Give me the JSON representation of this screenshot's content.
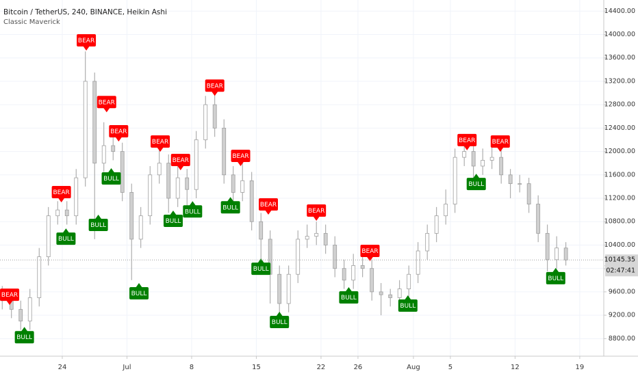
{
  "chart_data": {
    "type": "candlestick",
    "title": "Bitcoin / TetherUS, 240, BINANCE, Heikin Ashi",
    "subtitle": "Classic Maverick",
    "color": "#9e9e9e",
    "grid": true,
    "xlim": [
      -6.74,
      58.6
    ],
    "ylim": [
      8500,
      14590
    ],
    "xticks": [
      {
        "value": 0,
        "label": "24"
      },
      {
        "value": 7,
        "label": "Jul"
      },
      {
        "value": 14,
        "label": "8"
      },
      {
        "value": 21,
        "label": "15"
      },
      {
        "value": 28,
        "label": "22"
      },
      {
        "value": 32,
        "label": "26"
      },
      {
        "value": 38,
        "label": "Aug"
      },
      {
        "value": 42,
        "label": "5"
      },
      {
        "value": 49,
        "label": "12"
      },
      {
        "value": 56,
        "label": "19"
      }
    ],
    "yticks": [
      {
        "value": 8800,
        "label": "8800.00"
      },
      {
        "value": 9200,
        "label": "9200.00"
      },
      {
        "value": 9600,
        "label": "9600.00"
      },
      {
        "value": 10000,
        "label": "10000.00"
      },
      {
        "value": 10400,
        "label": "10400.00"
      },
      {
        "value": 10800,
        "label": "10800.00"
      },
      {
        "value": 11200,
        "label": "11200.00"
      },
      {
        "value": 11600,
        "label": "11600.00"
      },
      {
        "value": 12000,
        "label": "12000.00"
      },
      {
        "value": 12400,
        "label": "12400.00"
      },
      {
        "value": 12800,
        "label": "12800.00"
      },
      {
        "value": 13200,
        "label": "13200.00"
      },
      {
        "value": 13600,
        "label": "13600.00"
      },
      {
        "value": 14000,
        "label": "14000.00"
      },
      {
        "value": 14400,
        "label": "14400.00"
      }
    ],
    "x": [
      -6.5,
      -5.5,
      -4.5,
      -3.5,
      -2.5,
      -1.5,
      -0.5,
      0.5,
      1.5,
      2.5,
      3.5,
      4.5,
      5.5,
      6.5,
      7.5,
      8.5,
      9.5,
      10.5,
      11.5,
      12.5,
      13.5,
      14.5,
      15.5,
      16.5,
      17.5,
      18.5,
      19.5,
      20.5,
      21.5,
      22.5,
      23.5,
      24.5,
      25.5,
      26.5,
      27.5,
      28.5,
      29.5,
      30.5,
      31.5,
      32.5,
      33.5,
      34.5,
      35.5,
      36.5,
      37.5,
      38.5,
      39.5,
      40.5,
      41.5,
      42.5,
      43.5,
      44.5,
      45.5,
      46.5,
      47.5,
      48.5,
      49.5,
      50.5,
      51.5,
      52.5,
      53.5,
      54.5
    ],
    "open": [
      9550,
      9450,
      9300,
      9100,
      9500,
      10200,
      10900,
      11000,
      10900,
      11550,
      13200,
      11800,
      12100,
      12000,
      11300,
      10500,
      10900,
      11600,
      11800,
      11200,
      11550,
      11350,
      12200,
      12800,
      12400,
      11600,
      11300,
      11500,
      10800,
      10500,
      9900,
      9400,
      9900,
      10500,
      10550,
      10600,
      10400,
      10000,
      9800,
      10050,
      10000,
      9600,
      9550,
      9500,
      9650,
      9900,
      10300,
      10600,
      10900,
      11100,
      11900,
      12000,
      11750,
      11850,
      11900,
      11600,
      11450,
      11450,
      11100,
      10600,
      10150,
      10350
    ],
    "high": [
      9700,
      9600,
      9450,
      9650,
      10350,
      11050,
      11150,
      11150,
      11700,
      13710,
      13350,
      12500,
      12250,
      12150,
      11450,
      11050,
      11750,
      12100,
      11950,
      11850,
      11700,
      12350,
      12950,
      13000,
      12550,
      11750,
      11850,
      11650,
      10950,
      10650,
      10050,
      10050,
      10650,
      10750,
      10800,
      10750,
      10550,
      10150,
      10250,
      10250,
      10150,
      9750,
      9650,
      9800,
      10050,
      10450,
      10750,
      11050,
      11350,
      12050,
      12300,
      12150,
      12050,
      12100,
      12050,
      11700,
      11600,
      11550,
      11250,
      10750,
      10550,
      10450
    ],
    "low": [
      9300,
      9150,
      8950,
      8950,
      9350,
      10050,
      10750,
      10750,
      10750,
      11400,
      10500,
      11650,
      11850,
      11150,
      9800,
      10350,
      10750,
      11450,
      10950,
      11050,
      11000,
      11200,
      12050,
      12250,
      11450,
      11100,
      11150,
      10650,
      10100,
      9400,
      9150,
      9250,
      9750,
      10350,
      10400,
      10250,
      9850,
      9650,
      9650,
      9850,
      9450,
      9200,
      9350,
      9350,
      9500,
      9750,
      10150,
      10450,
      10750,
      10950,
      11750,
      11400,
      11600,
      11700,
      11450,
      11200,
      11300,
      10950,
      10450,
      9950,
      10000,
      10050
    ],
    "close": [
      9450,
      9300,
      9100,
      9500,
      10200,
      10900,
      11000,
      10900,
      11550,
      13200,
      11800,
      12100,
      12000,
      11300,
      10500,
      10900,
      11600,
      11800,
      11200,
      11550,
      11350,
      12200,
      12800,
      12400,
      11600,
      11300,
      11500,
      10800,
      10500,
      9900,
      9400,
      9900,
      10500,
      10550,
      10600,
      10400,
      10000,
      9800,
      10050,
      10000,
      9600,
      9550,
      9500,
      9650,
      9900,
      10300,
      10600,
      10900,
      11100,
      11900,
      12000,
      11750,
      11850,
      11900,
      11600,
      11450,
      11450,
      11100,
      10600,
      10150,
      10350,
      10145
    ],
    "signals": [
      {
        "label": "BEAR",
        "x": -5.7,
        "y": 9375,
        "color": "#ff0000"
      },
      {
        "label": "BEAR",
        "x": -0.1,
        "y": 11130,
        "color": "#ff0000"
      },
      {
        "label": "BEAR",
        "x": 2.6,
        "y": 13725,
        "color": "#ff0000"
      },
      {
        "label": "BEAR",
        "x": 4.8,
        "y": 12670,
        "color": "#ff0000"
      },
      {
        "label": "BEAR",
        "x": 6.1,
        "y": 12170,
        "color": "#ff0000"
      },
      {
        "label": "BEAR",
        "x": 10.6,
        "y": 11995,
        "color": "#ff0000"
      },
      {
        "label": "BEAR",
        "x": 12.8,
        "y": 11680,
        "color": "#ff0000"
      },
      {
        "label": "BEAR",
        "x": 16.5,
        "y": 12950,
        "color": "#ff0000"
      },
      {
        "label": "BEAR",
        "x": 19.3,
        "y": 11750,
        "color": "#ff0000"
      },
      {
        "label": "BEAR",
        "x": 22.3,
        "y": 10920,
        "color": "#ff0000"
      },
      {
        "label": "BEAR",
        "x": 27.5,
        "y": 10815,
        "color": "#ff0000"
      },
      {
        "label": "BEAR",
        "x": 33.3,
        "y": 10125,
        "color": "#ff0000"
      },
      {
        "label": "BEAR",
        "x": 43.8,
        "y": 12020,
        "color": "#ff0000"
      },
      {
        "label": "BEAR",
        "x": 47.4,
        "y": 11995,
        "color": "#ff0000"
      },
      {
        "label": "BULL",
        "x": -4.1,
        "y": 9000,
        "color": "#008000"
      },
      {
        "label": "BULL",
        "x": 0.4,
        "y": 10685,
        "color": "#008000"
      },
      {
        "label": "BULL",
        "x": 3.9,
        "y": 10920,
        "color": "#008000"
      },
      {
        "label": "BULL",
        "x": 5.3,
        "y": 11715,
        "color": "#008000"
      },
      {
        "label": "BULL",
        "x": 8.3,
        "y": 9750,
        "color": "#008000"
      },
      {
        "label": "BULL",
        "x": 12.0,
        "y": 10990,
        "color": "#008000"
      },
      {
        "label": "BULL",
        "x": 14.1,
        "y": 11150,
        "color": "#008000"
      },
      {
        "label": "BULL",
        "x": 18.2,
        "y": 11220,
        "color": "#008000"
      },
      {
        "label": "BULL",
        "x": 21.5,
        "y": 10170,
        "color": "#008000"
      },
      {
        "label": "BULL",
        "x": 23.5,
        "y": 9260,
        "color": "#008000"
      },
      {
        "label": "BULL",
        "x": 31.0,
        "y": 9680,
        "color": "#008000"
      },
      {
        "label": "BULL",
        "x": 37.4,
        "y": 9540,
        "color": "#008000"
      },
      {
        "label": "BULL",
        "x": 44.8,
        "y": 11620,
        "color": "#008000"
      },
      {
        "label": "BULL",
        "x": 53.4,
        "y": 10010,
        "color": "#008000"
      }
    ],
    "last_price": {
      "value": 10145.35,
      "label": "10145.35"
    },
    "countdown": "02:47:41"
  }
}
